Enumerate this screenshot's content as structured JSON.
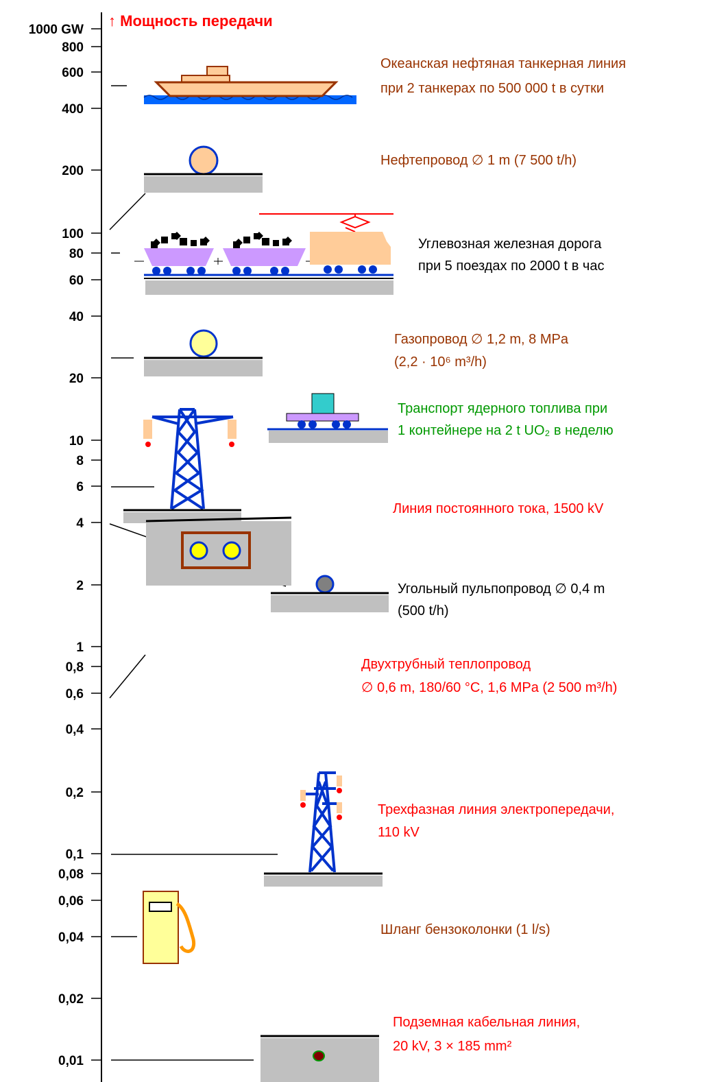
{
  "axis": {
    "title": "↑  Мощность передачи",
    "ticks": [
      "1000 GW",
      "800",
      "600",
      "400",
      "200",
      "100",
      "80",
      "60",
      "40",
      "20",
      "10",
      "8",
      "6",
      "4",
      "2",
      "1",
      "0,8",
      "0,6",
      "0,4",
      "0,2",
      "0,1",
      "0,08",
      "0,06",
      "0,04",
      "0,02",
      "0,01"
    ]
  },
  "items": [
    {
      "lines": [
        "Океанская нефтяная танкерная линия",
        "при 2 танкерах по  500 000 t  в сутки"
      ]
    },
    {
      "lines": [
        "Нефтепровод  ∅ 1 m  (7 500 t/h)"
      ]
    },
    {
      "lines": [
        "Углевозная железная дорога",
        "при 5 поездах по 2000 t  в час"
      ]
    },
    {
      "lines": [
        "Газопровод  ∅ 1,2 m, 8 MPa",
        "(2,2 · 10⁶  m³/h)"
      ]
    },
    {
      "lines": [
        "Транспорт ядерного топлива при",
        "1 контейнере на 2 t  UO₂  в неделю"
      ]
    },
    {
      "lines": [
        "Линия постоянного тока, 1500 kV"
      ]
    },
    {
      "lines": [
        "Угольный пульпопровод  ∅ 0,4 m",
        "(500  t/h)"
      ]
    },
    {
      "lines": [
        "Двухтрубный теплопровод",
        "∅ 0,6 m, 180/60 °C, 1,6 MPa  (2 500 m³/h)"
      ]
    },
    {
      "lines": [
        "Трехфазная линия электропередачи,",
        "110 kV"
      ]
    },
    {
      "lines": [
        "Шланг бензоколонки (1 l/s)"
      ]
    },
    {
      "lines": [
        "Подземная кабельная линия,",
        "20 kV,  3 × 185 mm²"
      ]
    }
  ]
}
